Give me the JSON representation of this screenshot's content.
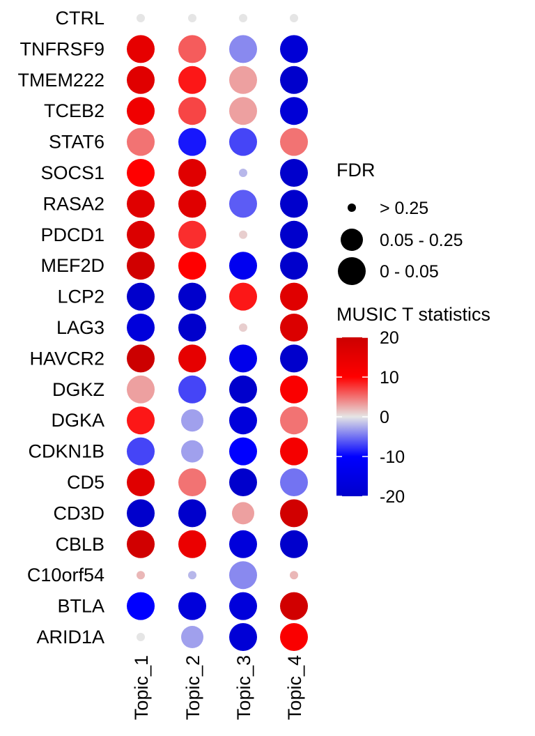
{
  "chart_data": {
    "type": "dot",
    "genes": [
      "CTRL",
      "TNFRSF9",
      "TMEM222",
      "TCEB2",
      "STAT6",
      "SOCS1",
      "RASA2",
      "PDCD1",
      "MEF2D",
      "LCP2",
      "LAG3",
      "HAVCR2",
      "DGKZ",
      "DGKA",
      "CDKN1B",
      "CD5",
      "CD3D",
      "CBLB",
      "C10orf54",
      "BTLA",
      "ARID1A"
    ],
    "topics": [
      "Topic_1",
      "Topic_2",
      "Topic_3",
      "Topic_4"
    ],
    "t_statistic": [
      [
        0,
        0,
        0,
        0
      ],
      [
        15,
        6,
        -4,
        -18
      ],
      [
        16,
        9,
        3,
        -20
      ],
      [
        13,
        7,
        3,
        -18
      ],
      [
        5,
        -9,
        -7,
        5
      ],
      [
        10,
        16,
        -2,
        -20
      ],
      [
        16,
        16,
        -6,
        -20
      ],
      [
        17,
        8,
        1,
        -20
      ],
      [
        19,
        10,
        -13,
        -20
      ],
      [
        -20,
        -20,
        9,
        16
      ],
      [
        -17,
        -20,
        1,
        17
      ],
      [
        20,
        15,
        -14,
        -20
      ],
      [
        3,
        -7,
        -20,
        11
      ],
      [
        9,
        -3,
        -17,
        5
      ],
      [
        -7,
        -3,
        -10,
        12
      ],
      [
        16,
        5,
        -20,
        -5
      ],
      [
        -20,
        -20,
        3,
        19
      ],
      [
        19,
        14,
        -17,
        -20
      ],
      [
        2,
        -2,
        -4,
        2
      ],
      [
        -10,
        -17,
        -17,
        19
      ],
      [
        0,
        -3,
        -18,
        11
      ]
    ],
    "fdr_class": [
      [
        0,
        0,
        0,
        0
      ],
      [
        2,
        2,
        2,
        2
      ],
      [
        2,
        2,
        2,
        2
      ],
      [
        2,
        2,
        2,
        2
      ],
      [
        2,
        2,
        2,
        2
      ],
      [
        2,
        2,
        0,
        2
      ],
      [
        2,
        2,
        2,
        2
      ],
      [
        2,
        2,
        0,
        2
      ],
      [
        2,
        2,
        2,
        2
      ],
      [
        2,
        2,
        2,
        2
      ],
      [
        2,
        2,
        0,
        2
      ],
      [
        2,
        2,
        2,
        2
      ],
      [
        2,
        2,
        2,
        2
      ],
      [
        2,
        1,
        2,
        2
      ],
      [
        2,
        1,
        2,
        2
      ],
      [
        2,
        2,
        2,
        2
      ],
      [
        2,
        2,
        1,
        2
      ],
      [
        2,
        2,
        2,
        2
      ],
      [
        0,
        0,
        2,
        0
      ],
      [
        2,
        2,
        2,
        2
      ],
      [
        0,
        1,
        2,
        2
      ]
    ],
    "size_legend": {
      "title": "FDR",
      "labels": [
        "> 0.25",
        "0.05 - 0.25",
        "0 - 0.05"
      ]
    },
    "color_legend": {
      "title": "MUSIC T statistics",
      "ticks": [
        20,
        10,
        0,
        -10,
        -20
      ],
      "range": [
        -20,
        20
      ],
      "colors": {
        "low": "#0000cc",
        "mid_low": "#0000ff",
        "mid": "#e5e5e5",
        "mid_high": "#ff0000",
        "high": "#cc0000"
      }
    }
  }
}
